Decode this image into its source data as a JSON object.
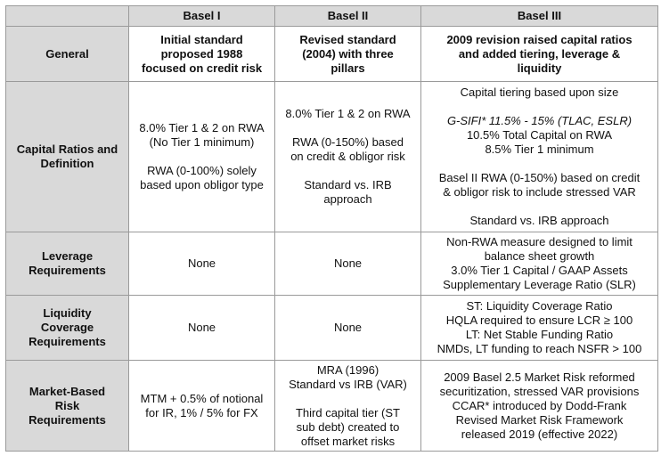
{
  "columns": [
    "Basel I",
    "Basel II",
    "Basel III"
  ],
  "rows": [
    {
      "label": "General",
      "basel1": [
        "Initial standard",
        "proposed 1988",
        "focused on credit risk"
      ],
      "basel2": [
        "Revised standard",
        "(2004) with three",
        "pillars"
      ],
      "basel3": [
        "2009 revision raised capital ratios",
        "and added tiering, leverage &",
        "liquidity"
      ]
    },
    {
      "label_lines": [
        "Capital Ratios and",
        "Definition"
      ],
      "basel1": [
        "8.0% Tier 1 & 2 on RWA",
        "(No Tier 1 minimum)",
        "",
        "RWA (0-100%) solely",
        "based upon obligor type"
      ],
      "basel2": [
        "8.0% Tier 1 & 2 on RWA",
        "",
        "RWA (0-150%) based",
        "on credit & obligor risk",
        "",
        "Standard vs. IRB",
        "approach"
      ],
      "basel3": [
        "Capital tiering based upon size",
        "",
        "G-SIFI* 11.5% - 15% (TLAC, ESLR)",
        "10.5% Total Capital on RWA",
        "8.5% Tier 1 minimum",
        "",
        "Basel II RWA (0-150%) based on credit",
        "& obligor risk to include stressed VAR",
        "",
        "Standard vs. IRB approach"
      ]
    },
    {
      "label_lines": [
        "Leverage",
        "Requirements"
      ],
      "basel1": [
        "None"
      ],
      "basel2": [
        "None"
      ],
      "basel3": [
        "Non-RWA measure designed to limit",
        "balance sheet growth",
        "3.0% Tier 1 Capital / GAAP Assets",
        "Supplementary Leverage Ratio (SLR)"
      ]
    },
    {
      "label_lines": [
        "Liquidity",
        "Coverage",
        "Requirements"
      ],
      "basel1": [
        "None"
      ],
      "basel2": [
        "None"
      ],
      "basel3": [
        "ST: Liquidity Coverage Ratio",
        "HQLA required to ensure LCR ≥ 100",
        "LT: Net Stable Funding Ratio",
        "NMDs, LT funding to reach NSFR > 100"
      ]
    },
    {
      "label_lines": [
        "Market-Based",
        "Risk",
        "Requirements"
      ],
      "basel1": [
        "MTM + 0.5% of notional",
        "for IR, 1% / 5% for FX"
      ],
      "basel2": [
        "MRA (1996)",
        "Standard vs IRB (VAR)",
        "",
        "Third capital tier (ST",
        "sub debt) created to",
        "offset market risks"
      ],
      "basel3": [
        "2009 Basel 2.5 Market Risk reformed",
        "securitization, stressed VAR provisions",
        "CCAR* introduced by Dodd-Frank",
        "Revised Market Risk Framework",
        "released 2019 (effective 2022)"
      ]
    }
  ]
}
